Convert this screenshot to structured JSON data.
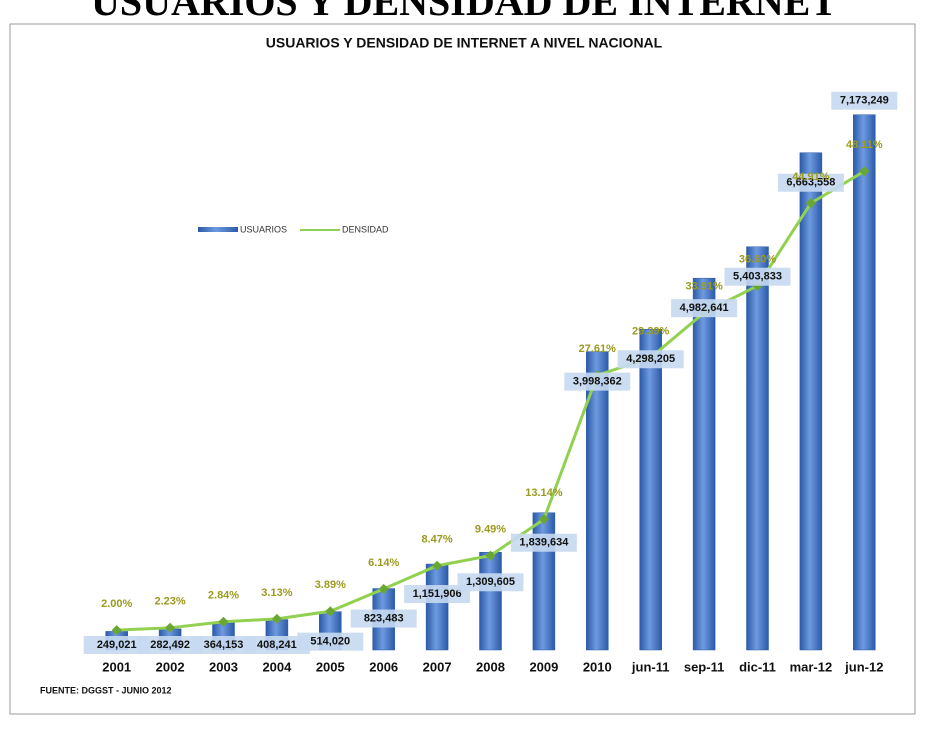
{
  "page_title": "USUARIOS Y DENSIDAD DE INTERNET",
  "chart_data": {
    "type": "bar_line",
    "title": "USUARIOS Y DENSIDAD DE INTERNET A NIVEL NACIONAL",
    "categories": [
      "2001",
      "2002",
      "2003",
      "2004",
      "2005",
      "2006",
      "2007",
      "2008",
      "2009",
      "2010",
      "jun-11",
      "sep-11",
      "dic-11",
      "mar-12",
      "jun-12"
    ],
    "series": [
      {
        "name": "USUARIOS",
        "color": "#3f6fbf",
        "axis": "y",
        "values": [
          249021,
          282492,
          364153,
          408241,
          514020,
          823483,
          1151906,
          1309605,
          1839634,
          3998362,
          4298205,
          4982641,
          5403833,
          6663558,
          7173249
        ],
        "value_labels": [
          "249,021",
          "282,492",
          "364,153",
          "408,241",
          "514,020",
          "823,483",
          "1,151,906",
          "1,309,605",
          "1,839,634",
          "3,998,362",
          "4,298,205",
          "4,982,641",
          "5,403,833",
          "6,663,558",
          "7,173,249"
        ]
      },
      {
        "name": "DENSIDAD",
        "color": "#92d050",
        "axis": "y2",
        "values": [
          2.0,
          2.23,
          2.84,
          3.13,
          3.89,
          6.14,
          8.47,
          9.49,
          13.14,
          27.61,
          29.39,
          33.91,
          36.6,
          44.91,
          48.11
        ],
        "value_labels": [
          "2.00%",
          "2.23%",
          "2.84%",
          "3.13%",
          "3.89%",
          "6.14%",
          "8.47%",
          "9.49%",
          "13.14%",
          "27.61%",
          "29.39%",
          "33.91%",
          "36.60%",
          "44.91%",
          "48.11%"
        ]
      }
    ],
    "ylim": [
      0,
      8000000
    ],
    "y2lim": [
      0,
      60
    ],
    "source": "FUENTE: DGGST - JUNIO 2012"
  }
}
